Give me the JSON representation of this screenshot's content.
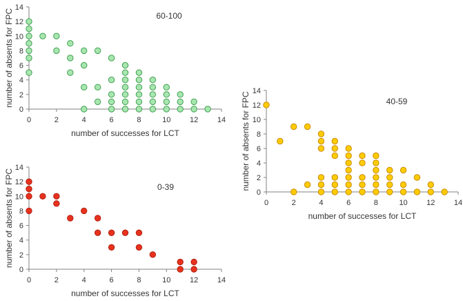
{
  "chart_data": [
    {
      "type": "scatter",
      "title": "60-100",
      "xlabel": "number of successes for LCT",
      "ylabel": "number of absents for FPC",
      "xlim": [
        0,
        14
      ],
      "ylim": [
        0,
        14
      ],
      "xticks": [
        0,
        2,
        4,
        6,
        8,
        10,
        12,
        14
      ],
      "yticks": [
        0,
        2,
        4,
        6,
        8,
        10,
        12,
        14
      ],
      "grid": false,
      "marker_fill": "#a8e6b0",
      "marker_edge": "#3f9f4f",
      "points": [
        [
          0,
          12
        ],
        [
          0,
          11
        ],
        [
          0,
          10
        ],
        [
          0,
          9
        ],
        [
          0,
          8
        ],
        [
          0,
          7
        ],
        [
          0,
          5
        ],
        [
          1,
          10
        ],
        [
          2,
          10
        ],
        [
          2,
          8
        ],
        [
          3,
          9
        ],
        [
          3,
          7
        ],
        [
          3,
          5
        ],
        [
          4,
          8
        ],
        [
          4,
          6
        ],
        [
          4,
          3
        ],
        [
          4,
          0
        ],
        [
          5,
          8
        ],
        [
          5,
          3
        ],
        [
          5,
          1
        ],
        [
          6,
          7
        ],
        [
          6,
          4
        ],
        [
          6,
          2
        ],
        [
          6,
          1
        ],
        [
          6,
          0
        ],
        [
          7,
          6
        ],
        [
          7,
          5
        ],
        [
          7,
          4
        ],
        [
          7,
          3
        ],
        [
          7,
          2
        ],
        [
          7,
          1
        ],
        [
          7,
          0
        ],
        [
          8,
          5
        ],
        [
          8,
          4
        ],
        [
          8,
          3
        ],
        [
          8,
          2
        ],
        [
          8,
          1
        ],
        [
          8,
          0
        ],
        [
          9,
          4
        ],
        [
          9,
          3
        ],
        [
          9,
          2
        ],
        [
          9,
          1
        ],
        [
          9,
          0
        ],
        [
          10,
          3
        ],
        [
          10,
          2
        ],
        [
          10,
          1
        ],
        [
          10,
          0
        ],
        [
          11,
          2
        ],
        [
          11,
          1
        ],
        [
          11,
          0
        ],
        [
          12,
          1
        ],
        [
          12,
          0
        ],
        [
          13,
          0
        ]
      ]
    },
    {
      "type": "scatter",
      "title": "40-59",
      "xlabel": "number of successes for LCT",
      "ylabel": "number of absents for FPC",
      "xlim": [
        0,
        14
      ],
      "ylim": [
        0,
        14
      ],
      "xticks": [
        0,
        2,
        4,
        6,
        8,
        10,
        12,
        14
      ],
      "yticks": [
        0,
        2,
        4,
        6,
        8,
        10,
        12,
        14
      ],
      "grid": false,
      "marker_fill": "#ffcc00",
      "marker_edge": "#c98a00",
      "points": [
        [
          0,
          12
        ],
        [
          1,
          7
        ],
        [
          2,
          9
        ],
        [
          2,
          0
        ],
        [
          3,
          9
        ],
        [
          3,
          1
        ],
        [
          4,
          8
        ],
        [
          4,
          7
        ],
        [
          4,
          6
        ],
        [
          4,
          2
        ],
        [
          4,
          1
        ],
        [
          4,
          0
        ],
        [
          5,
          7
        ],
        [
          5,
          6
        ],
        [
          5,
          5
        ],
        [
          5,
          2
        ],
        [
          5,
          1
        ],
        [
          5,
          0
        ],
        [
          6,
          6
        ],
        [
          6,
          5
        ],
        [
          6,
          4
        ],
        [
          6,
          3
        ],
        [
          6,
          2
        ],
        [
          6,
          1
        ],
        [
          6,
          0
        ],
        [
          7,
          5
        ],
        [
          7,
          4
        ],
        [
          7,
          2
        ],
        [
          7,
          1
        ],
        [
          7,
          0
        ],
        [
          8,
          5
        ],
        [
          8,
          4
        ],
        [
          8,
          3
        ],
        [
          8,
          2
        ],
        [
          8,
          1
        ],
        [
          8,
          0
        ],
        [
          9,
          3
        ],
        [
          9,
          2
        ],
        [
          9,
          1
        ],
        [
          9,
          0
        ],
        [
          10,
          3
        ],
        [
          10,
          1
        ],
        [
          10,
          0
        ],
        [
          11,
          2
        ],
        [
          11,
          0
        ],
        [
          12,
          1
        ],
        [
          12,
          0
        ],
        [
          13,
          0
        ]
      ]
    },
    {
      "type": "scatter",
      "title": "0-39",
      "xlabel": "number of successes for LCT",
      "ylabel": "number of absents for FPC",
      "xlim": [
        0,
        14
      ],
      "ylim": [
        0,
        14
      ],
      "xticks": [
        0,
        2,
        4,
        6,
        8,
        10,
        12,
        14
      ],
      "yticks": [
        0,
        2,
        4,
        6,
        8,
        10,
        12,
        14
      ],
      "grid": false,
      "marker_fill": "#e8321e",
      "marker_edge": "#b01e10",
      "points": [
        [
          0,
          12
        ],
        [
          0,
          11
        ],
        [
          0,
          10
        ],
        [
          0,
          8
        ],
        [
          1,
          10
        ],
        [
          2,
          10
        ],
        [
          2,
          9
        ],
        [
          3,
          7
        ],
        [
          4,
          8
        ],
        [
          5,
          7
        ],
        [
          5,
          5
        ],
        [
          6,
          5
        ],
        [
          6,
          3
        ],
        [
          7,
          5
        ],
        [
          8,
          5
        ],
        [
          8,
          3
        ],
        [
          9,
          2
        ],
        [
          11,
          1
        ],
        [
          11,
          0
        ],
        [
          12,
          1
        ],
        [
          12,
          0
        ]
      ]
    }
  ]
}
